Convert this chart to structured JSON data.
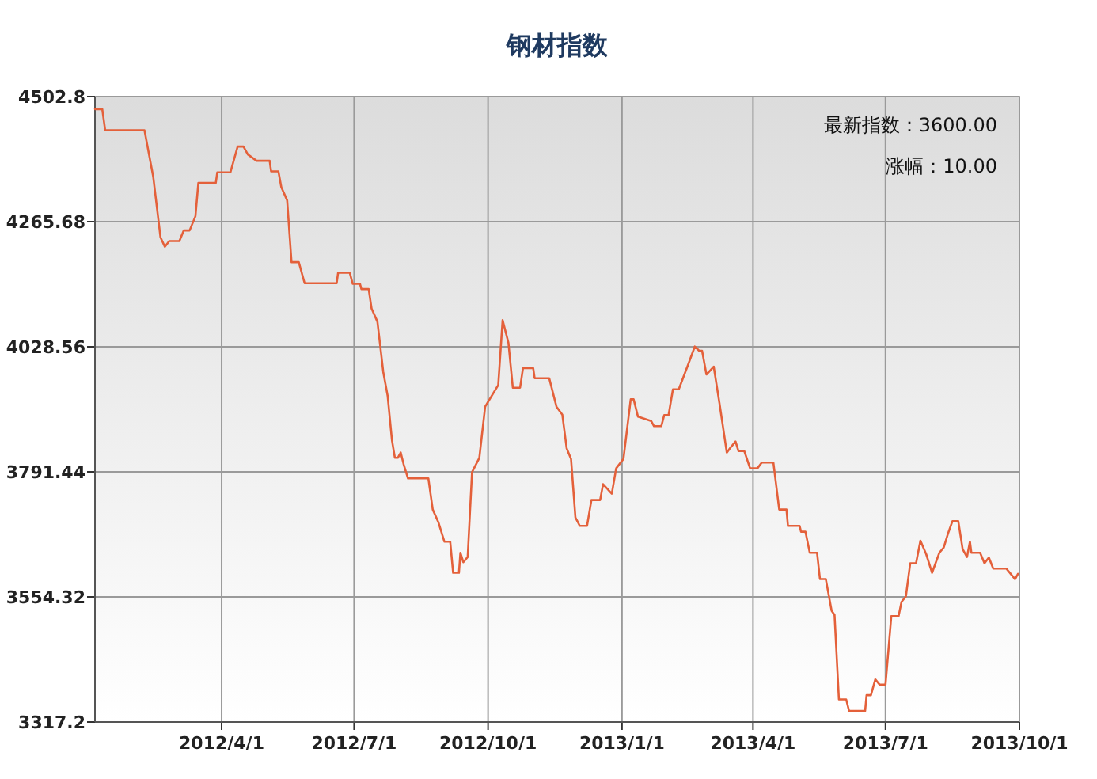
{
  "chart_data": {
    "type": "line",
    "title": "钢材指数",
    "x": [
      "2012-01-05",
      "2012-01-10",
      "2012-01-12",
      "2012-02-08",
      "2012-02-14",
      "2012-02-19",
      "2012-02-22",
      "2012-02-25",
      "2012-03-03",
      "2012-03-06",
      "2012-03-10",
      "2012-03-14",
      "2012-03-16",
      "2012-03-28",
      "2012-03-29",
      "2012-04-07",
      "2012-04-12",
      "2012-04-16",
      "2012-04-19",
      "2012-04-25",
      "2012-05-04",
      "2012-05-05",
      "2012-05-10",
      "2012-05-12",
      "2012-05-16",
      "2012-05-19",
      "2012-05-24",
      "2012-05-28",
      "2012-06-19",
      "2012-06-20",
      "2012-06-28",
      "2012-06-30",
      "2012-07-05",
      "2012-07-06",
      "2012-07-11",
      "2012-07-13",
      "2012-07-17",
      "2012-07-21",
      "2012-07-24",
      "2012-07-27",
      "2012-07-29",
      "2012-07-31",
      "2012-08-02",
      "2012-08-04",
      "2012-08-07",
      "2012-08-21",
      "2012-08-24",
      "2012-08-28",
      "2012-09-01",
      "2012-09-05",
      "2012-09-07",
      "2012-09-11",
      "2012-09-12",
      "2012-09-14",
      "2012-09-17",
      "2012-09-20",
      "2012-09-25",
      "2012-09-29",
      "2012-10-08",
      "2012-10-11",
      "2012-10-15",
      "2012-10-18",
      "2012-10-23",
      "2012-10-25",
      "2012-11-01",
      "2012-11-02",
      "2012-11-12",
      "2012-11-17",
      "2012-11-21",
      "2012-11-24",
      "2012-11-27",
      "2012-11-30",
      "2012-12-03",
      "2012-12-08",
      "2012-12-11",
      "2012-12-17",
      "2012-12-19",
      "2012-12-25",
      "2012-12-28",
      "2013-01-02",
      "2013-01-07",
      "2013-01-09",
      "2013-01-12",
      "2013-01-21",
      "2013-01-23",
      "2013-01-28",
      "2013-01-30",
      "2013-02-02",
      "2013-02-05",
      "2013-02-09",
      "2013-02-16",
      "2013-02-20",
      "2013-02-23",
      "2013-02-25",
      "2013-02-28",
      "2013-03-05",
      "2013-03-09",
      "2013-03-14",
      "2013-03-17",
      "2013-03-20",
      "2013-03-22",
      "2013-03-26",
      "2013-03-30",
      "2013-04-04",
      "2013-04-07",
      "2013-04-15",
      "2013-04-19",
      "2013-04-24",
      "2013-04-25",
      "2013-05-03",
      "2013-05-04",
      "2013-05-07",
      "2013-05-10",
      "2013-05-15",
      "2013-05-17",
      "2013-05-21",
      "2013-05-25",
      "2013-05-27",
      "2013-05-30",
      "2013-06-04",
      "2013-06-06",
      "2013-06-17",
      "2013-06-18",
      "2013-06-21",
      "2013-06-24",
      "2013-06-27",
      "2013-07-01",
      "2013-07-05",
      "2013-07-10",
      "2013-07-12",
      "2013-07-15",
      "2013-07-18",
      "2013-07-22",
      "2013-07-25",
      "2013-07-29",
      "2013-08-02",
      "2013-08-07",
      "2013-08-10",
      "2013-08-13",
      "2013-08-16",
      "2013-08-20",
      "2013-08-23",
      "2013-08-26",
      "2013-08-28",
      "2013-08-29",
      "2013-09-04",
      "2013-09-07",
      "2013-09-10",
      "2013-09-13",
      "2013-09-22",
      "2013-09-25",
      "2013-09-28",
      "2013-09-30"
    ],
    "series": [
      {
        "color": "#e4603a",
        "values": [
          4479,
          4479,
          4439,
          4439,
          4351,
          4236,
          4218,
          4229,
          4229,
          4249,
          4249,
          4276,
          4339,
          4339,
          4359,
          4359,
          4408,
          4408,
          4393,
          4381,
          4381,
          4361,
          4361,
          4331,
          4306,
          4189,
          4189,
          4149,
          4149,
          4169,
          4169,
          4148,
          4148,
          4138,
          4138,
          4101,
          4076,
          3981,
          3936,
          3851,
          3818,
          3818,
          3828,
          3806,
          3779,
          3779,
          3720,
          3695,
          3659,
          3659,
          3600,
          3600,
          3638,
          3620,
          3630,
          3791,
          3818,
          3915,
          3956,
          4079,
          4036,
          3951,
          3951,
          3988,
          3988,
          3969,
          3969,
          3915,
          3900,
          3836,
          3816,
          3705,
          3689,
          3689,
          3738,
          3738,
          3768,
          3750,
          3798,
          3816,
          3929,
          3929,
          3896,
          3888,
          3878,
          3878,
          3899,
          3899,
          3948,
          3948,
          3999,
          4029,
          4021,
          4021,
          3976,
          3991,
          3921,
          3828,
          3839,
          3849,
          3831,
          3831,
          3798,
          3798,
          3809,
          3809,
          3720,
          3720,
          3689,
          3689,
          3678,
          3678,
          3638,
          3638,
          3588,
          3588,
          3528,
          3520,
          3360,
          3360,
          3338,
          3338,
          3368,
          3368,
          3398,
          3388,
          3388,
          3518,
          3518,
          3545,
          3555,
          3618,
          3618,
          3661,
          3635,
          3600,
          3638,
          3648,
          3675,
          3698,
          3698,
          3645,
          3630,
          3659,
          3638,
          3638,
          3618,
          3629,
          3608,
          3608,
          3598,
          3588,
          3598
        ]
      }
    ],
    "xlim": [
      "2012-01-05",
      "2013-10-01"
    ],
    "xticks": [
      {
        "value": "2012-04-01",
        "label": "2012/4/1"
      },
      {
        "value": "2012-07-01",
        "label": "2012/7/1"
      },
      {
        "value": "2012-10-01",
        "label": "2012/10/1"
      },
      {
        "value": "2013-01-01",
        "label": "2013/1/1"
      },
      {
        "value": "2013-04-01",
        "label": "2013/4/1"
      },
      {
        "value": "2013-07-01",
        "label": "2013/7/1"
      },
      {
        "value": "2013-10-01",
        "label": "2013/10/1"
      }
    ],
    "ylim": [
      3317.2,
      4502.8
    ],
    "yticks": [
      3317.2,
      3554.32,
      3791.44,
      4028.56,
      4265.68,
      4502.8
    ],
    "grid": true,
    "annotations": [
      "最新指数：3600.00",
      "涨幅：10.00"
    ]
  }
}
